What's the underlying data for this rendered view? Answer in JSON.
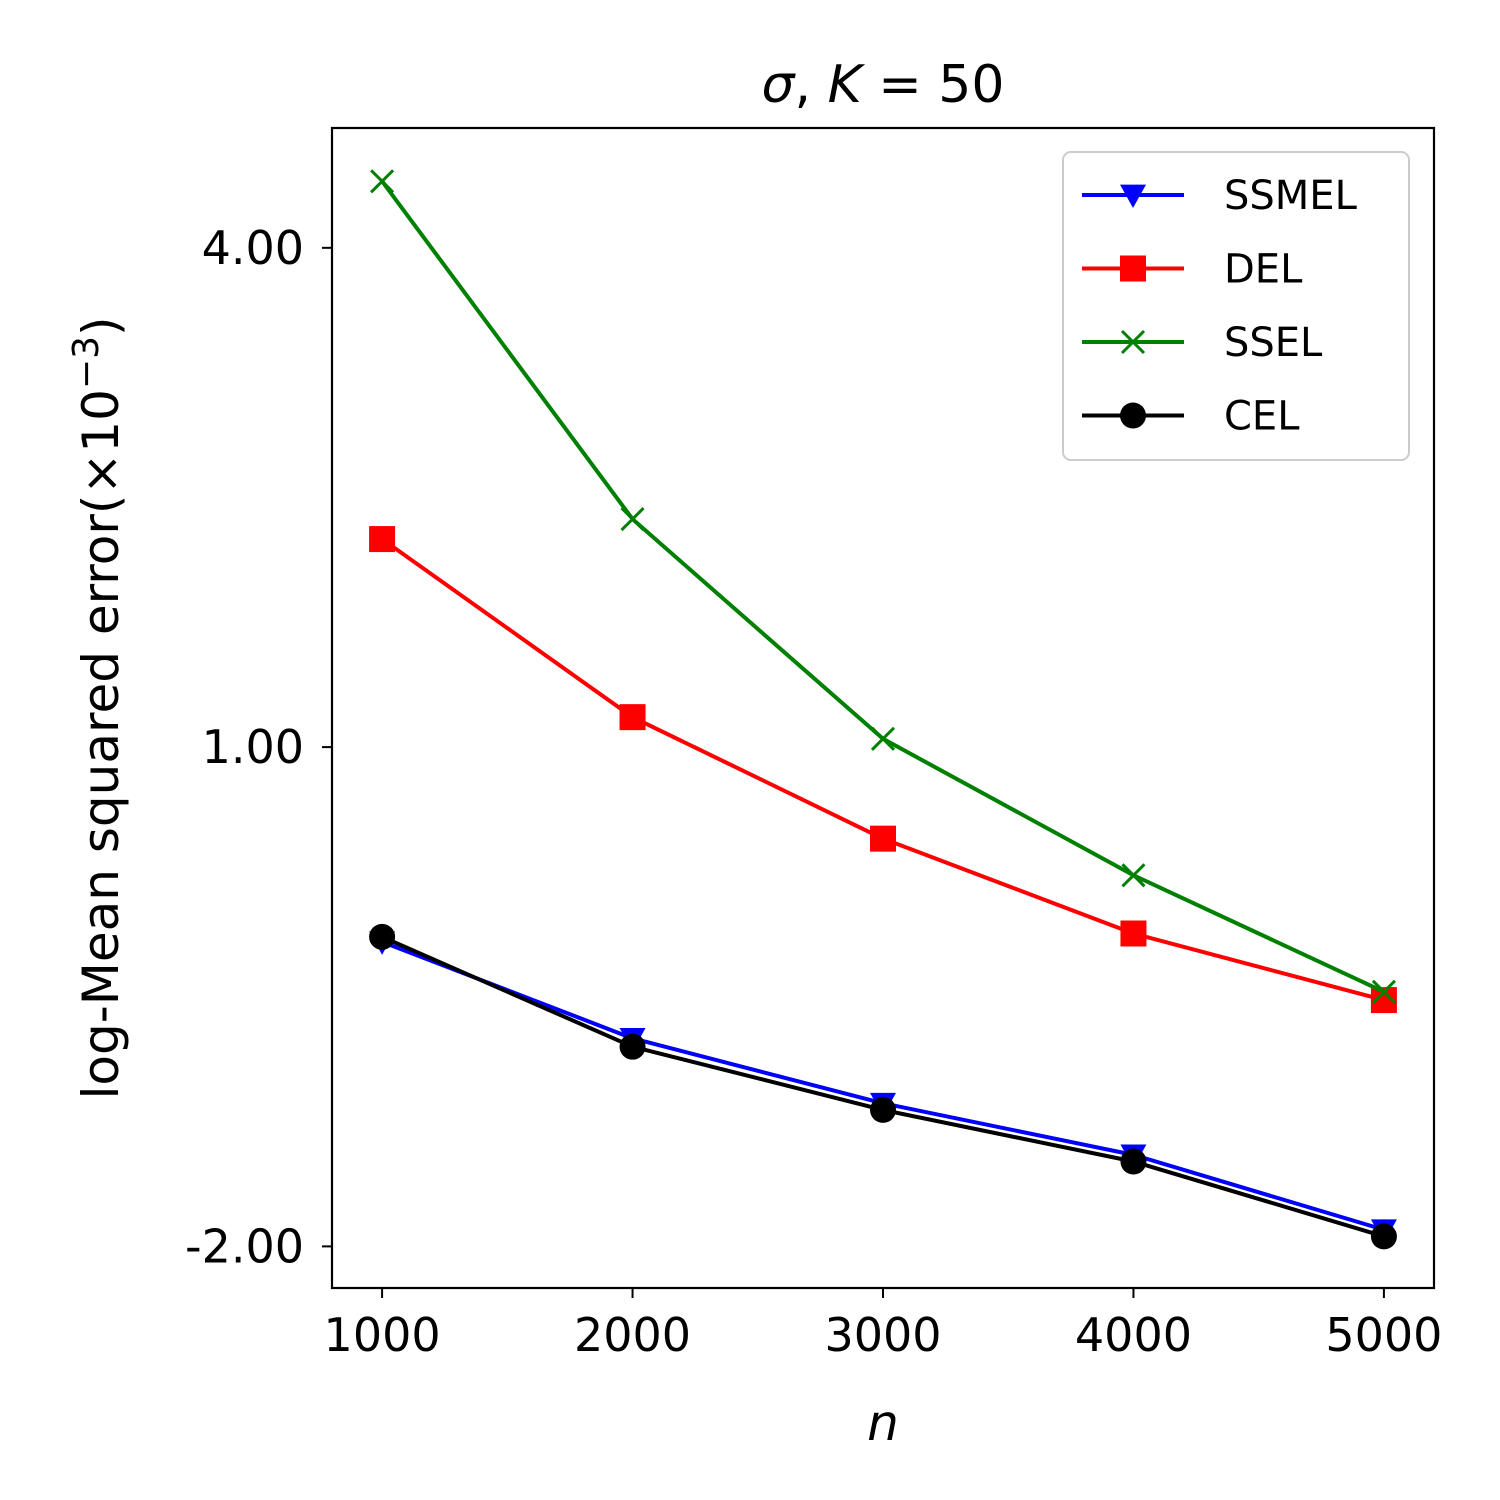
{
  "chart_data": {
    "type": "line",
    "title": "σ, K = 50",
    "title_parts": {
      "sigma": "σ",
      "sep": ", ",
      "k": "K",
      "eq": " = 50"
    },
    "xlabel": "n",
    "ylabel": "log-Mean squared error(×10",
    "ylabel_exp": "−3",
    "ylabel_close": ")",
    "x": [
      1000,
      2000,
      3000,
      4000,
      5000
    ],
    "xticks": [
      "1000",
      "2000",
      "3000",
      "4000",
      "5000"
    ],
    "yticks": [
      "4.00",
      "1.00",
      "-2.00"
    ],
    "ytick_values": [
      4.0,
      1.0,
      -2.0
    ],
    "xlim": [
      800,
      5200
    ],
    "ylim": [
      -2.25,
      4.72
    ],
    "grid": false,
    "legend_position": "top-right",
    "series": [
      {
        "name": "SSMEL",
        "color": "#0000ff",
        "marker": "triangle-down",
        "values": [
          -0.17,
          -0.75,
          -1.14,
          -1.45,
          -1.9
        ]
      },
      {
        "name": "DEL",
        "color": "#ff0000",
        "marker": "square",
        "values": [
          2.25,
          1.18,
          0.45,
          -0.12,
          -0.52
        ]
      },
      {
        "name": "SSEL",
        "color": "#008000",
        "marker": "x",
        "values": [
          4.4,
          2.37,
          1.05,
          0.23,
          -0.47
        ]
      },
      {
        "name": "CEL",
        "color": "#000000",
        "marker": "circle",
        "values": [
          -0.14,
          -0.8,
          -1.18,
          -1.49,
          -1.94
        ]
      }
    ]
  }
}
